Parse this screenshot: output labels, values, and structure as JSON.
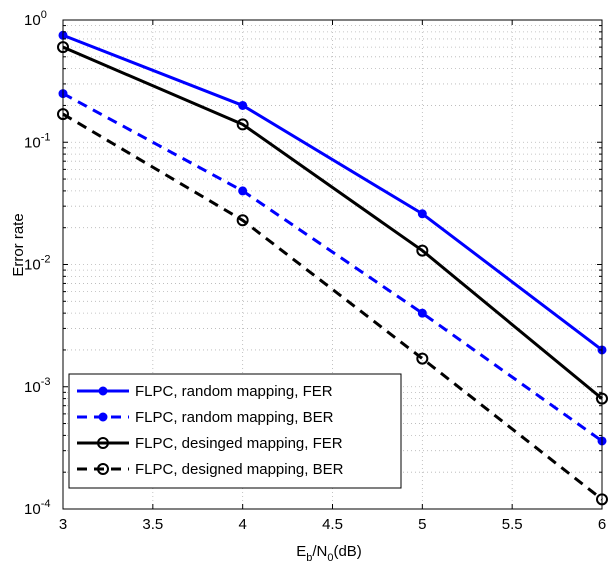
{
  "chart_data": {
    "type": "line",
    "xlabel_main": "E",
    "xlabel_sub1": "b",
    "xlabel_mid": "/N",
    "xlabel_sub2": "0",
    "xlabel_tail": "(dB)",
    "ylabel": "Error rate",
    "yscale": "log",
    "xlim": [
      3,
      6
    ],
    "ylim": [
      0.0001,
      1
    ],
    "grid": true,
    "legend_position": "bottom-left",
    "x_ticks": [
      "3",
      "3.5",
      "4",
      "4.5",
      "5",
      "5.5",
      "6"
    ],
    "y_ticks": [
      {
        "base": "10",
        "exp": "0"
      },
      {
        "base": "10",
        "exp": "-1"
      },
      {
        "base": "10",
        "exp": "-2"
      },
      {
        "base": "10",
        "exp": "-3"
      },
      {
        "base": "10",
        "exp": "-4"
      }
    ],
    "x": [
      3,
      4,
      5,
      6
    ],
    "series": [
      {
        "name": "FLPC, random mapping, FER",
        "values": [
          0.75,
          0.2,
          0.026,
          0.002
        ],
        "color": "#0000ff",
        "dash": "solid",
        "marker": "dot"
      },
      {
        "name": "FLPC, random mapping, BER",
        "values": [
          0.25,
          0.04,
          0.004,
          0.00036
        ],
        "color": "#0000ff",
        "dash": "dashed",
        "marker": "dot"
      },
      {
        "name": "FLPC, desinged mapping, FER",
        "values": [
          0.6,
          0.14,
          0.013,
          0.0008
        ],
        "color": "#000000",
        "dash": "solid",
        "marker": "circle"
      },
      {
        "name": "FLPC, designed mapping, BER",
        "values": [
          0.17,
          0.023,
          0.0017,
          0.00012
        ],
        "color": "#000000",
        "dash": "dashed",
        "marker": "circle"
      }
    ]
  }
}
